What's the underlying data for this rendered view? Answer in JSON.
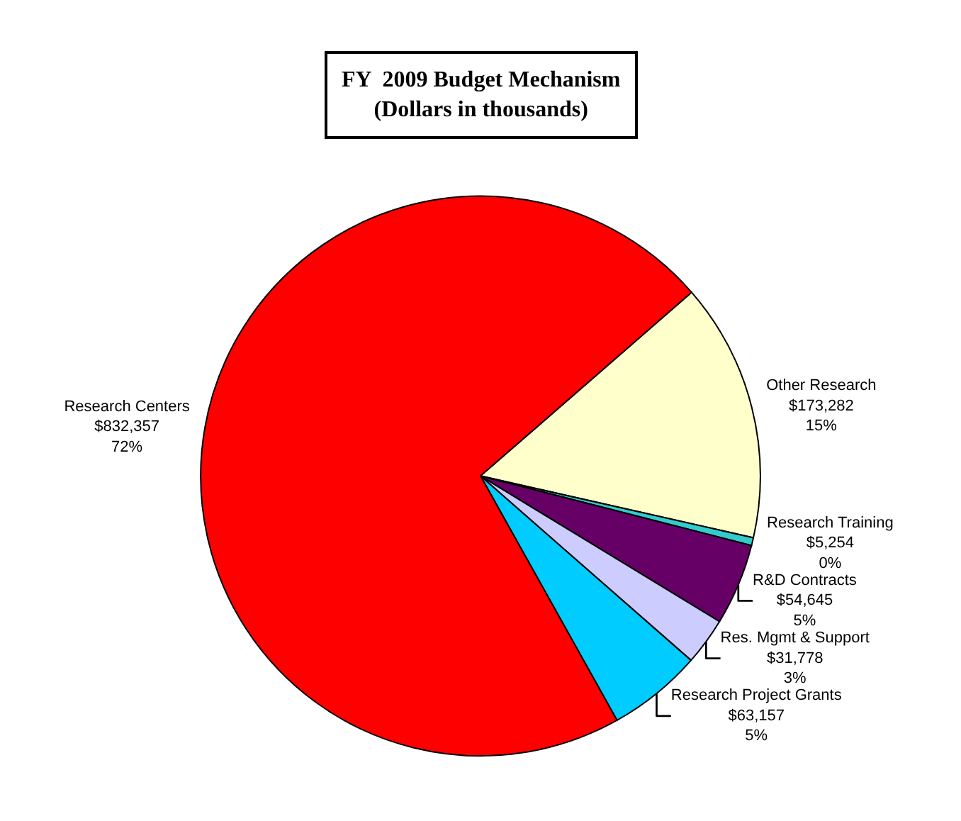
{
  "chart_data": {
    "type": "pie",
    "title": "FY  2009 Budget Mechanism\n(Dollars in thousands)",
    "categories": [
      "Other Research",
      "Research Training",
      "R&D Contracts",
      "Res. Mgmt & Support",
      "Research Project Grants",
      "Research Centers"
    ],
    "values": [
      173282,
      5254,
      54645,
      31778,
      63157,
      832357
    ],
    "colors": [
      "#ffffcc",
      "#33cccc",
      "#660066",
      "#ccccff",
      "#00ccff",
      "#ff0000"
    ],
    "value_labels": [
      "$173,282\n15%",
      "$5,254\n0%",
      "$54,645\n5%",
      "$31,778\n3%",
      "$63,157\n5%",
      "$832,357\n72%"
    ],
    "legend": false
  }
}
